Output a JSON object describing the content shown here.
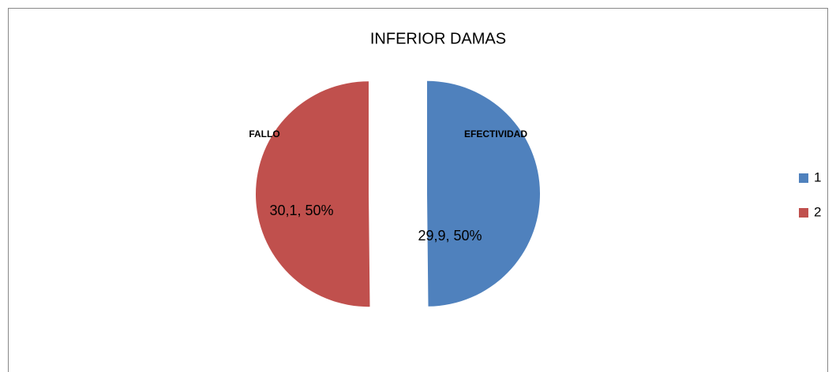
{
  "chart_data": {
    "type": "pie",
    "title": "INFERIOR DAMAS",
    "categories": [
      "1",
      "2"
    ],
    "values": [
      29.9,
      30.1
    ],
    "value_labels": [
      "29,9, 50%",
      "30,1, 50%"
    ],
    "colors": [
      "#4f81bd",
      "#c0504d"
    ],
    "annotations": [
      "EFECTIVIDAD",
      "FALLO"
    ],
    "legend": "right"
  }
}
